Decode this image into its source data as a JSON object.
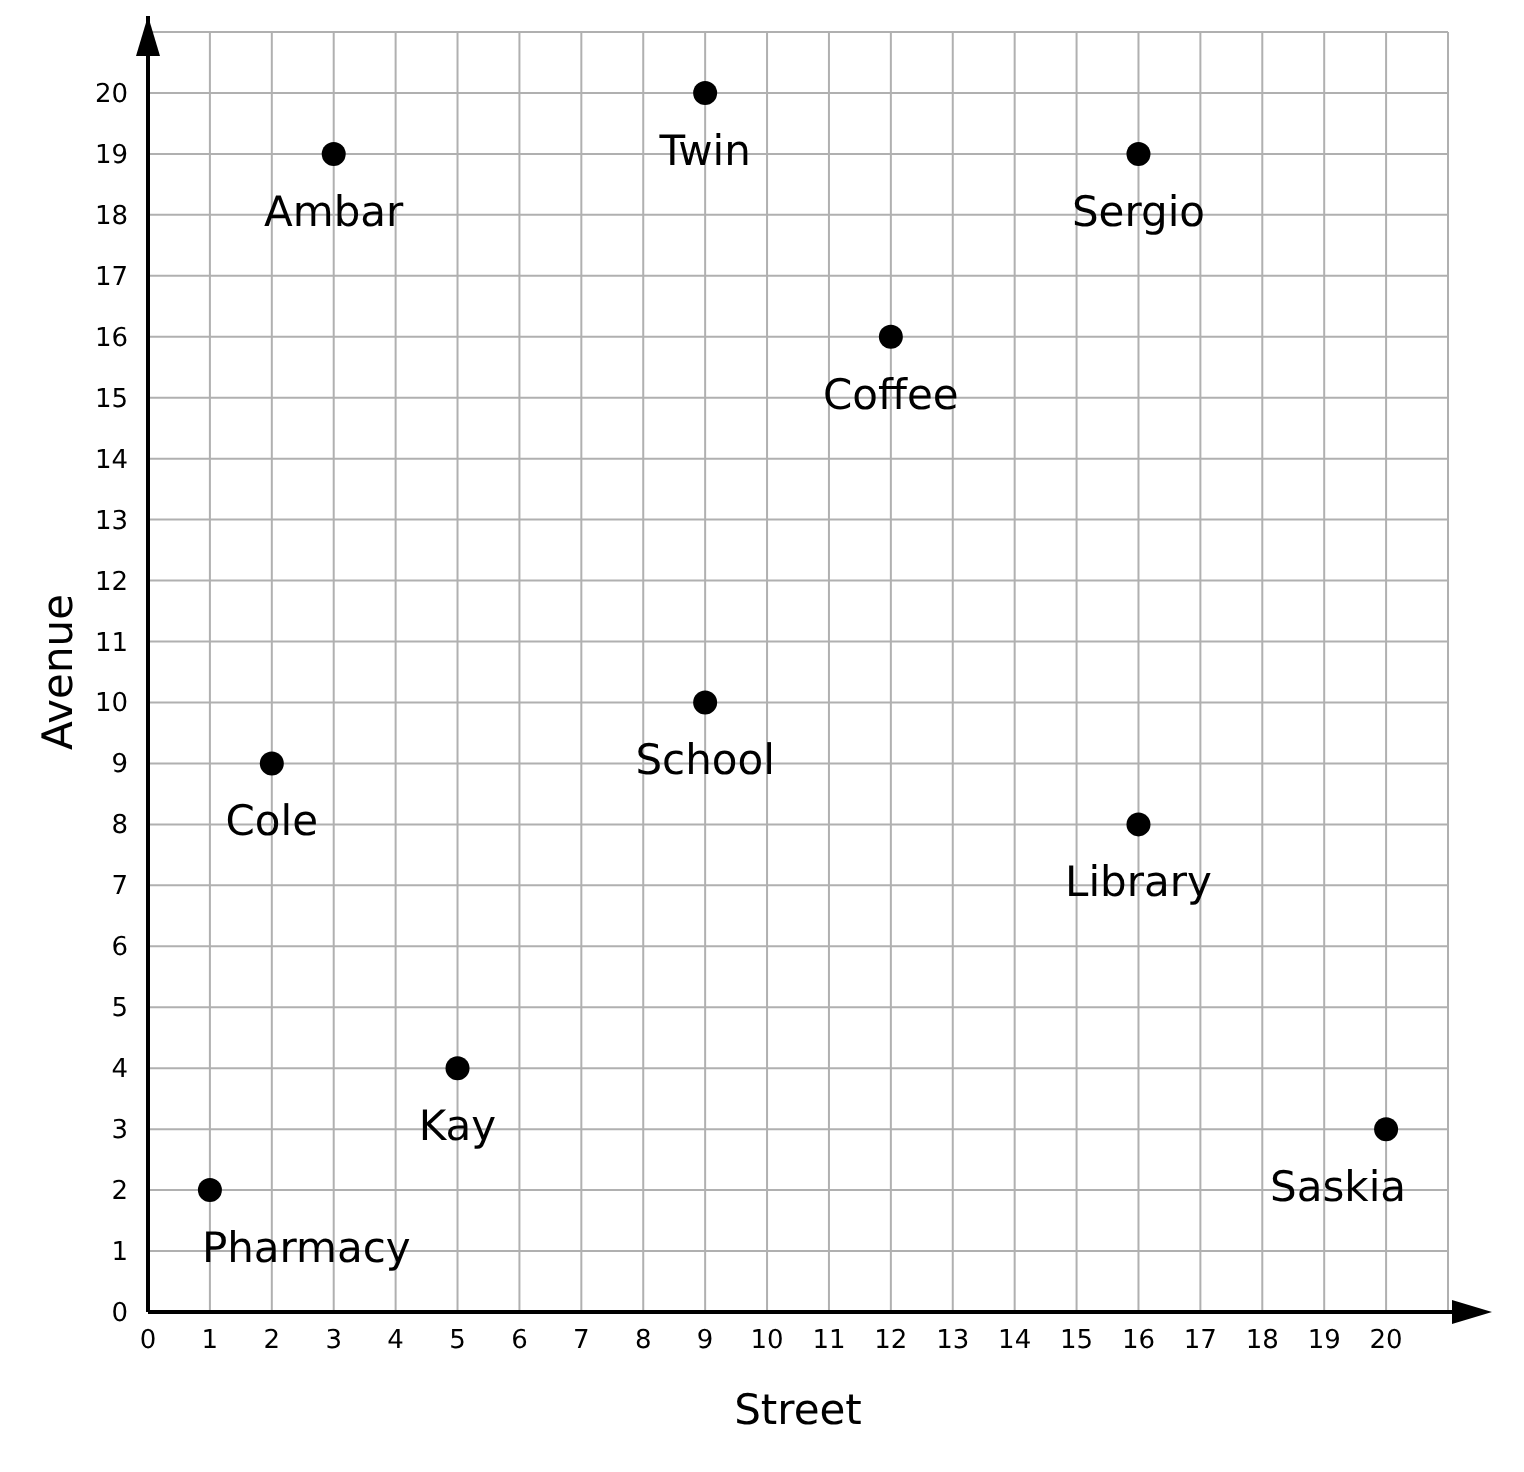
{
  "chart_data": {
    "type": "scatter",
    "xlabel": "Street",
    "ylabel": "Avenue",
    "x": [
      3,
      9,
      16,
      12,
      9,
      2,
      16,
      5,
      1,
      20
    ],
    "values": [
      19,
      20,
      19,
      16,
      10,
      9,
      8,
      4,
      2,
      3
    ],
    "color": "#000000",
    "marker": "circle",
    "grid": true,
    "xlim": [
      0,
      21
    ],
    "ylim": [
      0,
      21
    ],
    "xticks": [
      0,
      1,
      2,
      3,
      4,
      5,
      6,
      7,
      8,
      9,
      10,
      11,
      12,
      13,
      14,
      15,
      16,
      17,
      18,
      19,
      20
    ],
    "yticks": [
      0,
      1,
      2,
      3,
      4,
      5,
      6,
      7,
      8,
      9,
      10,
      11,
      12,
      13,
      14,
      15,
      16,
      17,
      18,
      19,
      20
    ],
    "annotations": [
      {
        "text": "Ambar",
        "x": 3,
        "y": 19
      },
      {
        "text": "Twin",
        "x": 9,
        "y": 20
      },
      {
        "text": "Sergio",
        "x": 16,
        "y": 19
      },
      {
        "text": "Coffee",
        "x": 12,
        "y": 16
      },
      {
        "text": "School",
        "x": 9,
        "y": 10
      },
      {
        "text": "Cole",
        "x": 2,
        "y": 9
      },
      {
        "text": "Library",
        "x": 16,
        "y": 8
      },
      {
        "text": "Kay",
        "x": 5,
        "y": 4
      },
      {
        "text": "Pharmacy",
        "x": 1,
        "y": 2
      },
      {
        "text": "Saskia",
        "x": 20,
        "y": 3
      }
    ]
  }
}
